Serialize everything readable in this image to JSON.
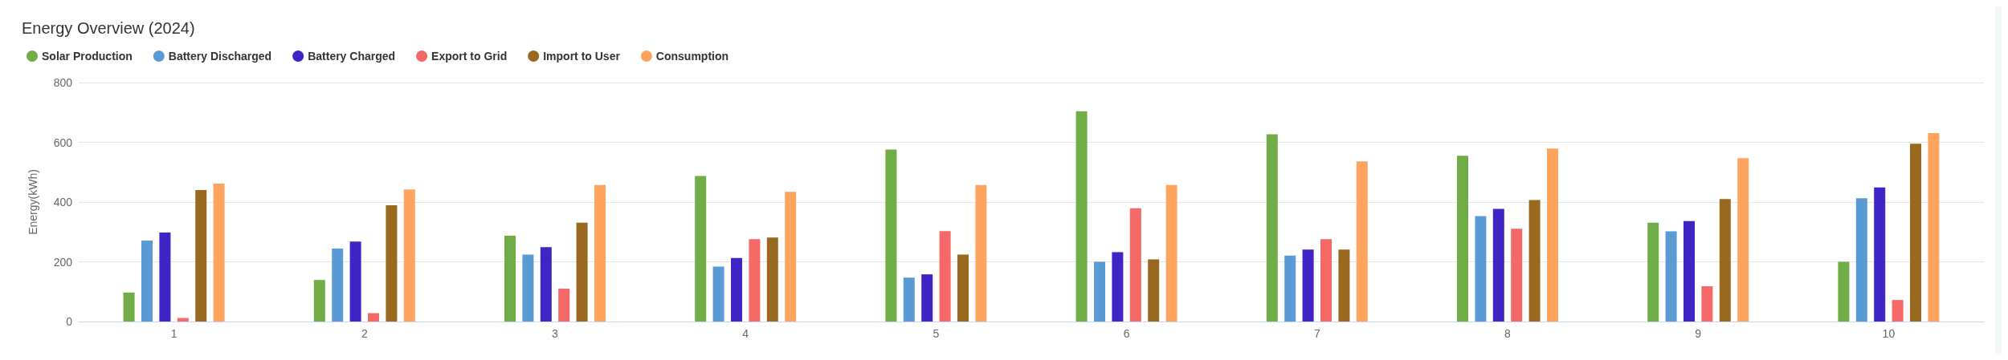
{
  "chart_data": {
    "type": "bar",
    "title": "Energy Overview (2024)",
    "ylabel": "Energy(kWh)",
    "categories": [
      "1",
      "2",
      "3",
      "4",
      "5",
      "6",
      "7",
      "8",
      "9",
      "10"
    ],
    "series": [
      {
        "name": "Solar Production",
        "color": "#70ad47",
        "values": [
          97,
          139,
          287,
          487,
          576,
          704,
          627,
          555,
          331,
          200
        ]
      },
      {
        "name": "Battery Discharged",
        "color": "#5b9bd5",
        "values": [
          271,
          244,
          224,
          184,
          147,
          200,
          221,
          353,
          302,
          413
        ]
      },
      {
        "name": "Battery Charged",
        "color": "#4124c6",
        "values": [
          298,
          268,
          249,
          213,
          158,
          232,
          241,
          377,
          336,
          449
        ]
      },
      {
        "name": "Export to Grid",
        "color": "#f46868",
        "values": [
          12,
          28,
          110,
          276,
          303,
          379,
          276,
          311,
          118,
          72
        ]
      },
      {
        "name": "Import to User",
        "color": "#98691f",
        "values": [
          440,
          389,
          331,
          281,
          224,
          208,
          241,
          407,
          410,
          595
        ]
      },
      {
        "name": "Consumption",
        "color": "#ffa45f",
        "values": [
          462,
          442,
          457,
          434,
          457,
          457,
          536,
          579,
          547,
          631
        ]
      }
    ],
    "ylim": [
      0,
      800
    ],
    "yticks": [
      0,
      200,
      400,
      600,
      800
    ],
    "grid": "y",
    "legend": "top left"
  }
}
